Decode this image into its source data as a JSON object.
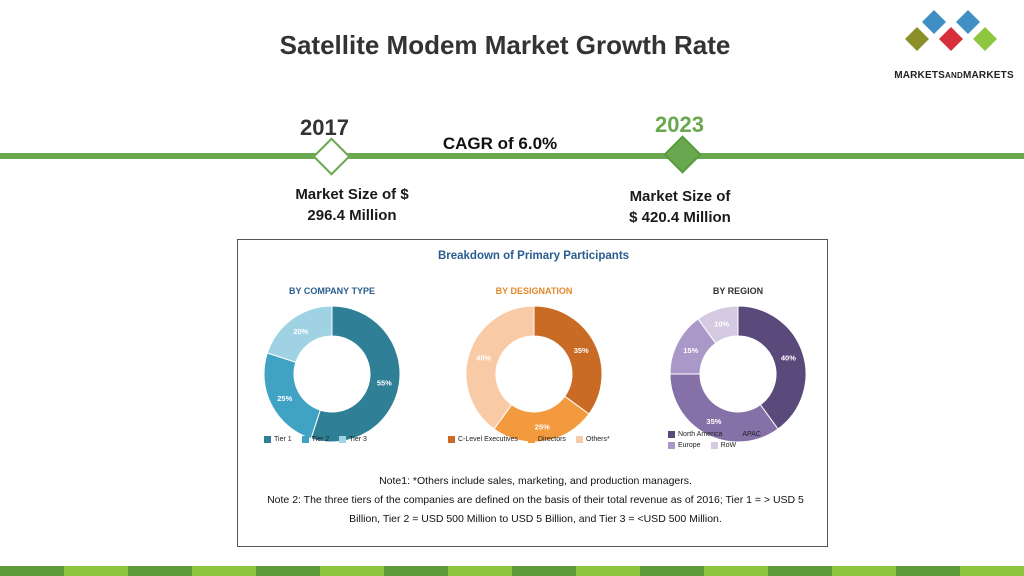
{
  "title": "Satellite Modem Market Growth Rate",
  "logo": {
    "brand_main": "MARKETS",
    "brand_small": "AND",
    "brand_end": "MARKETS"
  },
  "timeline": {
    "start_year": "2017",
    "end_year": "2023",
    "cagr_text": "CAGR of 6.0%",
    "start_market_line1": "Market Size of $",
    "start_market_line2": "296.4 Million",
    "end_market_line1": "Market Size of",
    "end_market_line2": "$ 420.4 Million"
  },
  "colors": {
    "accent_green": "#6aa84f",
    "title_blue": "#2a5d8f",
    "designation_orange": "#e2882b"
  },
  "panel": {
    "title": "Breakdown of Primary Participants",
    "note1": "Note1: *Others include sales, marketing, and production managers.",
    "note2": "Note 2: The three tiers of the companies are defined on the basis of their total revenue as of 2016; Tier 1 = > USD 5 Billion, Tier 2 = USD 500 Million to USD 5 Billion, and Tier 3 = <USD 500 Million."
  },
  "chart_data": [
    {
      "type": "pie",
      "title": "BY COMPANY TYPE",
      "categories": [
        "Tier 1",
        "Tier 2",
        "Tier 3"
      ],
      "values": [
        55,
        25,
        20
      ],
      "labels": [
        "55%",
        "25%",
        "20%"
      ],
      "colors": [
        "#2f7f97",
        "#41a3c4",
        "#9fd3e3"
      ],
      "legend": "bottom"
    },
    {
      "type": "pie",
      "title": "BY DESIGNATION",
      "categories": [
        "C-Level Executives",
        "Directors",
        "Others*"
      ],
      "values": [
        35,
        25,
        40
      ],
      "labels": [
        "35%",
        "25%",
        "40%"
      ],
      "colors": [
        "#c96a25",
        "#f29a3d",
        "#f9caa6"
      ],
      "legend": "bottom"
    },
    {
      "type": "pie",
      "title": "BY REGION",
      "categories": [
        "North America",
        "APAC",
        "Europe",
        "RoW"
      ],
      "values": [
        40,
        35,
        15,
        10
      ],
      "labels": [
        "40%",
        "35%",
        "15%",
        "10%"
      ],
      "colors": [
        "#5a4a7c",
        "#8670a8",
        "#a998c8",
        "#d4cbe2"
      ],
      "legend": "bottom"
    }
  ],
  "footer_colors": [
    "#5f9a3a",
    "#8dc63f",
    "#5f9a3a",
    "#8dc63f",
    "#5f9a3a",
    "#8dc63f",
    "#5f9a3a",
    "#8dc63f",
    "#5f9a3a",
    "#8dc63f",
    "#5f9a3a",
    "#8dc63f",
    "#5f9a3a",
    "#8dc63f",
    "#5f9a3a",
    "#8dc63f"
  ]
}
